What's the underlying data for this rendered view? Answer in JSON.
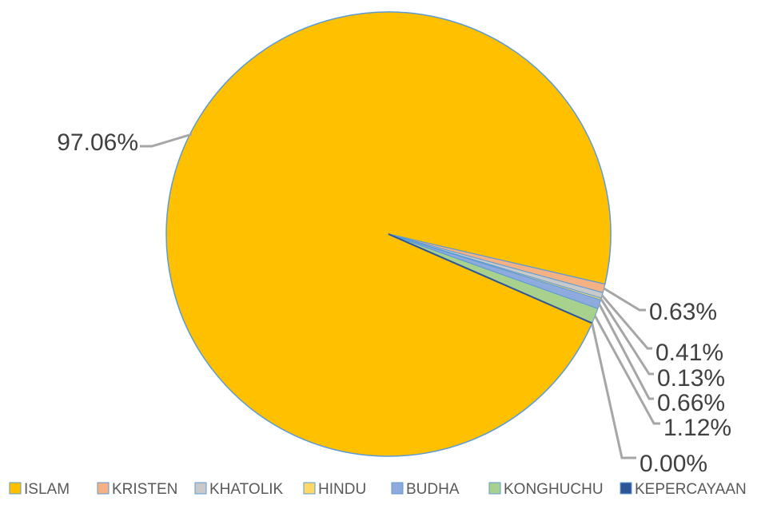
{
  "chart_data": {
    "type": "pie",
    "title": "",
    "series": [
      {
        "categories": [
          "ISLAM",
          "KRISTEN",
          "KHATOLIK",
          "HINDU",
          "BUDHA",
          "KONGHUCHU",
          "KEPERCAYAAN"
        ],
        "values": [
          97.06,
          0.63,
          0.41,
          0.13,
          0.66,
          1.12,
          0.0
        ],
        "labels": [
          "97.06%",
          "0.63%",
          "0.41%",
          "0.13%",
          "0.66%",
          "1.12%",
          "0.00%"
        ]
      }
    ],
    "colors": [
      "#ffc000",
      "#f4b183",
      "#c9c9c9",
      "#ffd966",
      "#8faadc",
      "#a9d18e",
      "#2e5597"
    ],
    "legend_position": "bottom",
    "data_labels": "outside with leader lines"
  }
}
